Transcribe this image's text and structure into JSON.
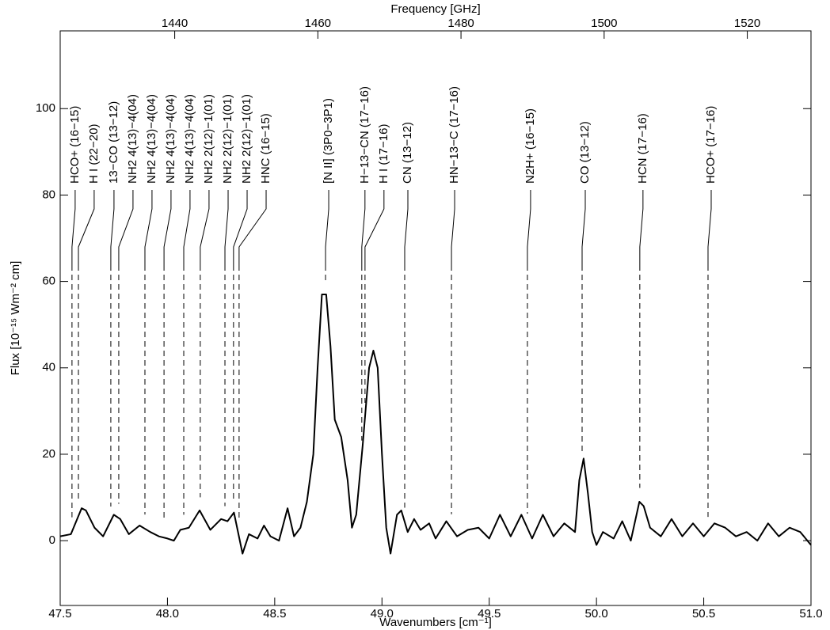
{
  "chart_data": {
    "type": "line",
    "xlabel": "Wavenumbers [cm⁻¹]",
    "ylabel": "Flux [10⁻¹⁵ Wm⁻² cm]",
    "x2label": "Frequency [GHz]",
    "xlim": [
      47.5,
      51.0
    ],
    "ylim": [
      -15,
      118
    ],
    "x2lim": [
      1424.0,
      1528.9
    ],
    "xticks": [
      {
        "value": 47.5,
        "label": "47.5"
      },
      {
        "value": 48.0,
        "label": "48.0"
      },
      {
        "value": 48.5,
        "label": "48.5"
      },
      {
        "value": 49.0,
        "label": "49.0"
      },
      {
        "value": 49.5,
        "label": "49.5"
      },
      {
        "value": 50.0,
        "label": "50.0"
      },
      {
        "value": 50.5,
        "label": "50.5"
      },
      {
        "value": 51.0,
        "label": "51.0"
      }
    ],
    "yticks": [
      0,
      20,
      40,
      60,
      80,
      100
    ],
    "x2ticks": [
      1440,
      1460,
      1480,
      1500,
      1520
    ],
    "x": [
      47.5,
      47.55,
      47.6,
      47.62,
      47.66,
      47.7,
      47.75,
      47.78,
      47.82,
      47.87,
      47.92,
      47.96,
      48.0,
      48.03,
      48.06,
      48.1,
      48.15,
      48.2,
      48.25,
      48.28,
      48.31,
      48.35,
      48.38,
      48.42,
      48.45,
      48.48,
      48.52,
      48.56,
      48.59,
      48.62,
      48.65,
      48.68,
      48.7,
      48.72,
      48.74,
      48.76,
      48.78,
      48.81,
      48.84,
      48.86,
      48.88,
      48.91,
      48.94,
      48.96,
      48.98,
      49.0,
      49.02,
      49.04,
      49.07,
      49.09,
      49.12,
      49.15,
      49.18,
      49.22,
      49.25,
      49.3,
      49.35,
      49.4,
      49.45,
      49.5,
      49.55,
      49.6,
      49.65,
      49.7,
      49.75,
      49.8,
      49.85,
      49.9,
      49.92,
      49.94,
      49.96,
      49.98,
      50.0,
      50.03,
      50.08,
      50.12,
      50.16,
      50.2,
      50.22,
      50.25,
      50.3,
      50.35,
      50.4,
      50.45,
      50.5,
      50.55,
      50.6,
      50.65,
      50.7,
      50.75,
      50.8,
      50.85,
      50.9,
      50.95,
      51.0
    ],
    "series": [
      {
        "color": "#000000",
        "values": [
          1,
          1.5,
          7.5,
          7,
          3,
          1,
          6,
          5,
          1.5,
          3.5,
          2,
          1,
          0.5,
          0,
          2.5,
          3,
          7,
          2.5,
          5,
          4.5,
          6.5,
          -3,
          1.5,
          0.5,
          3.5,
          1,
          0,
          7.5,
          1,
          3,
          9,
          20,
          40,
          57,
          57,
          45,
          28,
          24,
          14,
          3,
          6,
          22,
          40,
          44,
          40,
          20,
          3,
          -3,
          6,
          7,
          2,
          5,
          2.5,
          4,
          0.5,
          4.5,
          1,
          2.5,
          3,
          0.5,
          6,
          1,
          6,
          0.5,
          6,
          1,
          4,
          2,
          14,
          19,
          11,
          2,
          -1,
          2,
          0.5,
          4.5,
          0,
          9,
          8,
          3,
          1,
          5,
          1,
          4,
          1,
          4,
          3,
          1,
          2,
          0,
          4,
          1,
          3,
          2,
          -1
        ]
      }
    ],
    "lines": [
      {
        "label": "HCO+ (16−15)",
        "x": 47.555
      },
      {
        "label": "H I (22−20)",
        "x": 47.585
      },
      {
        "label": "13−CO (13−12)",
        "x": 47.736
      },
      {
        "label": "NH2 4(13)−4(04)",
        "x": 47.773
      },
      {
        "label": "NH2 4(13)−4(04)",
        "x": 47.895
      },
      {
        "label": "NH2 4(13)−4(04)",
        "x": 47.984
      },
      {
        "label": "NH2 4(13)−4(04)",
        "x": 48.076
      },
      {
        "label": "NH2 2(12)−1(01)",
        "x": 48.153
      },
      {
        "label": "NH2 2(12)−1(01)",
        "x": 48.268
      },
      {
        "label": "NH2 2(12)−1(01)",
        "x": 48.308
      },
      {
        "label": "HNC (16−15)",
        "x": 48.334
      },
      {
        "label": "[N II] (3P0−3P1)",
        "x": 48.737
      },
      {
        "label": "H−13−CN (17−16)",
        "x": 48.906
      },
      {
        "label": "H I (17−16)",
        "x": 48.921
      },
      {
        "label": "CN (13−12)",
        "x": 49.106
      },
      {
        "label": "HN−13−C (17−16)",
        "x": 49.324
      },
      {
        "label": "N2H+ (16−15)",
        "x": 49.678
      },
      {
        "label": "CO (13−12)",
        "x": 49.933
      },
      {
        "label": "HCN (17−16)",
        "x": 50.202
      },
      {
        "label": "HCO+ (17−16)",
        "x": 50.52
      }
    ]
  }
}
